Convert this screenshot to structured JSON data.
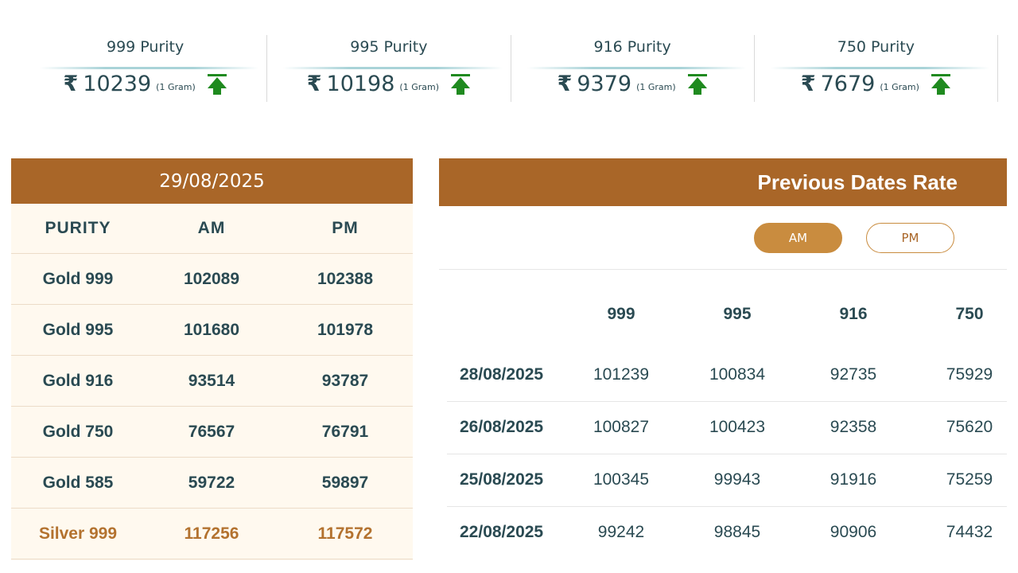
{
  "purity_cards": [
    {
      "title": "999 Purity",
      "currency": "₹",
      "price": "10239",
      "unit": "(1 Gram)",
      "trend_icon": "up-arrow-icon"
    },
    {
      "title": "995 Purity",
      "currency": "₹",
      "price": "10198",
      "unit": "(1 Gram)",
      "trend_icon": "up-arrow-icon"
    },
    {
      "title": "916 Purity",
      "currency": "₹",
      "price": "9379",
      "unit": "(1 Gram)",
      "trend_icon": "up-arrow-icon"
    },
    {
      "title": "750 Purity",
      "currency": "₹",
      "price": "7679",
      "unit": "(1 Gram)",
      "trend_icon": "up-arrow-icon"
    }
  ],
  "today": {
    "date": "29/08/2025",
    "columns": [
      "PURITY",
      "AM",
      "PM"
    ],
    "rows": [
      [
        "Gold 999",
        "102089",
        "102388"
      ],
      [
        "Gold 995",
        "101680",
        "101978"
      ],
      [
        "Gold 916",
        "93514",
        "93787"
      ],
      [
        "Gold 750",
        "76567",
        "76791"
      ],
      [
        "Gold 585",
        "59722",
        "59897"
      ],
      [
        "Silver 999",
        "117256",
        "117572"
      ]
    ]
  },
  "previous": {
    "title": "Previous Dates Rate",
    "toggle": {
      "am": "AM",
      "pm": "PM",
      "selected": "AM"
    },
    "columns": [
      "999",
      "995",
      "916",
      "750"
    ],
    "rows": [
      [
        "28/08/2025",
        "101239",
        "100834",
        "92735",
        "75929"
      ],
      [
        "26/08/2025",
        "100827",
        "100423",
        "92358",
        "75620"
      ],
      [
        "25/08/2025",
        "100345",
        "99943",
        "91916",
        "75259"
      ],
      [
        "22/08/2025",
        "99242",
        "98845",
        "90906",
        "74432"
      ]
    ]
  },
  "colors": {
    "header_brown": "#a96628",
    "accent_gold": "#c98c3f",
    "text_teal": "#2a4a52",
    "silver_text": "#b3722f",
    "trend_green": "#1f8a1f",
    "today_bg": "#fff9ef"
  }
}
